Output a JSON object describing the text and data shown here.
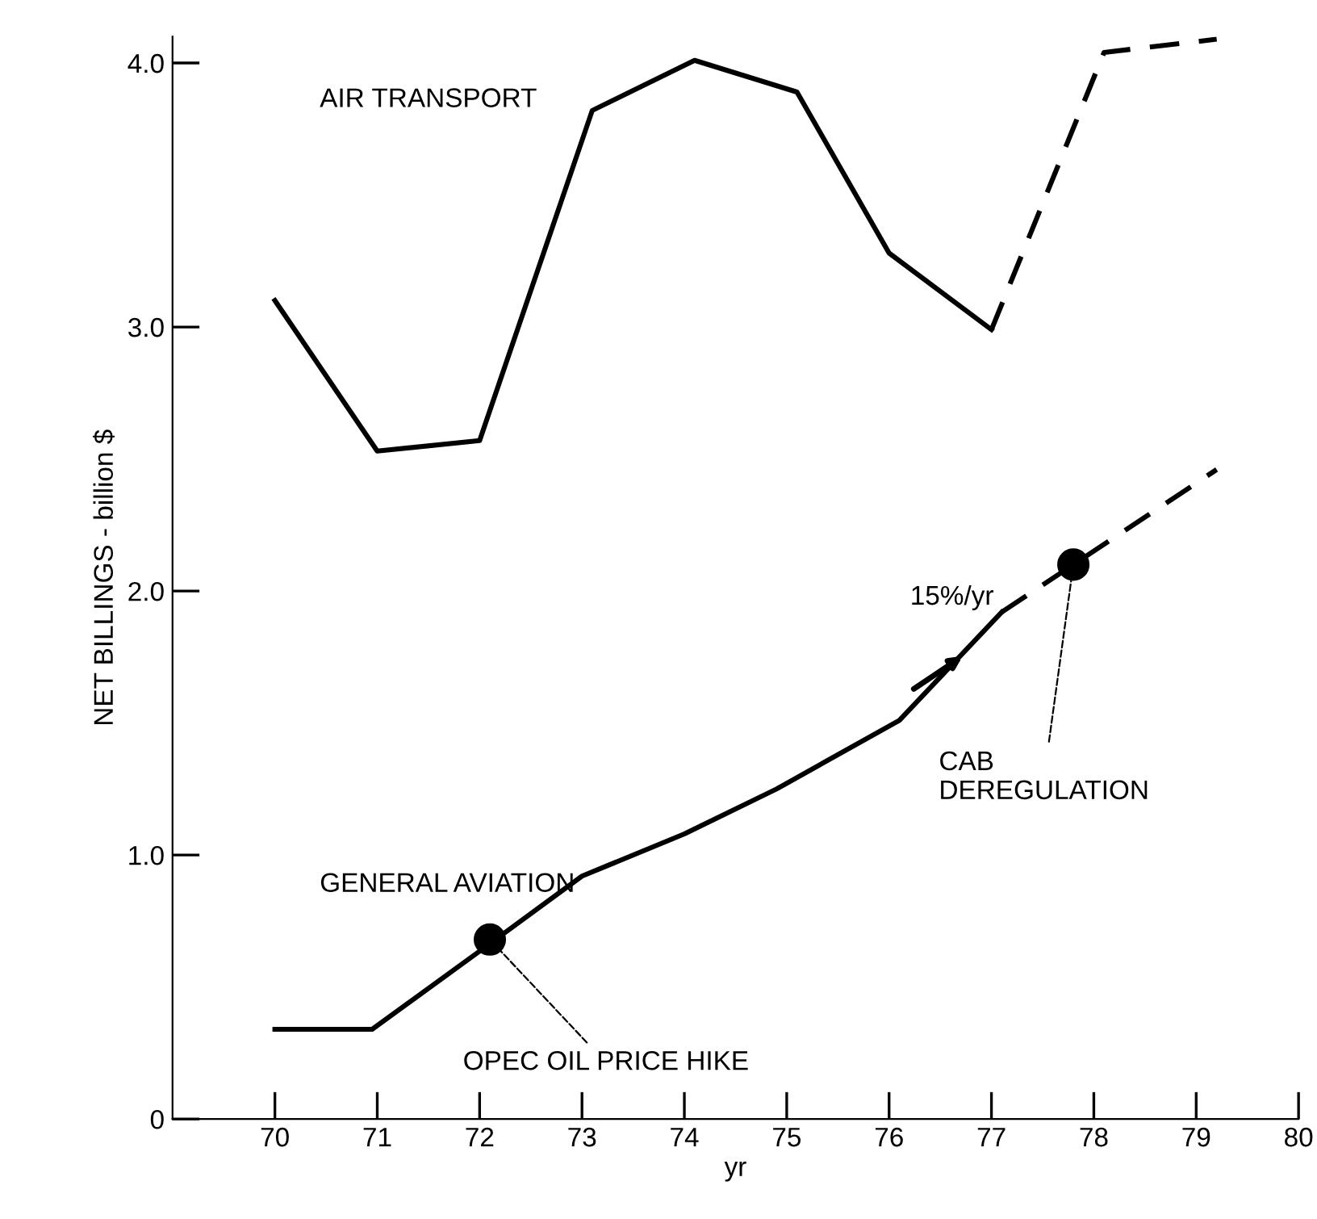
{
  "chart_data": {
    "type": "line",
    "xlabel": "yr",
    "ylabel": "NET BILLINGS - billion $",
    "xlim": [
      69,
      80
    ],
    "ylim": [
      0,
      4.1
    ],
    "xticks": [
      70,
      71,
      72,
      {
        "value": 73,
        "label": "73"
      },
      74,
      75,
      76,
      77,
      78,
      79,
      80
    ],
    "yticks": [
      0,
      {
        "value": 1,
        "label": "1.0"
      },
      {
        "value": 2,
        "label": "2.0"
      },
      {
        "value": 3,
        "label": "3.0"
      },
      {
        "value": 4,
        "label": "4.0"
      }
    ],
    "grid": false,
    "legend": false,
    "series": [
      {
        "name": "AIR TRANSPORT",
        "color": "#000000",
        "line_style": "solid",
        "x": [
          70,
          71,
          72,
          73.1,
          74.1,
          75.1,
          76,
          77
        ],
        "values": [
          3.1,
          2.53,
          2.57,
          3.82,
          4.01,
          3.89,
          3.28,
          2.99
        ]
      },
      {
        "color": "#000000",
        "line_style": "dashed",
        "x": [
          77,
          78.1,
          79.2
        ],
        "values": [
          2.99,
          4.04,
          4.09
        ]
      },
      {
        "name": "GENERAL AVIATION",
        "color": "#000000",
        "line_style": "solid",
        "x": [
          70,
          70.95,
          72.05,
          73,
          74,
          74.9,
          76.1,
          77.1
        ],
        "values": [
          0.34,
          0.34,
          0.65,
          0.92,
          1.08,
          1.25,
          1.51,
          1.92
        ]
      },
      {
        "color": "#000000",
        "line_style": "dashed",
        "x": [
          77.1,
          77.8,
          79.2
        ],
        "values": [
          1.92,
          2.1,
          2.46
        ]
      },
      {
        "type": "scatter",
        "color": "#000000",
        "marker": "circle",
        "x": [
          72.1,
          77.8
        ],
        "values": [
          0.68,
          2.1
        ]
      }
    ],
    "annotations": [
      {
        "text": "OPEC OIL PRICE HIKE",
        "x": 72.1,
        "y": 0.68
      },
      {
        "text": "CAB\nDEREGULATION",
        "x": 77.8,
        "y": 2.1
      },
      "15%/yr"
    ]
  }
}
